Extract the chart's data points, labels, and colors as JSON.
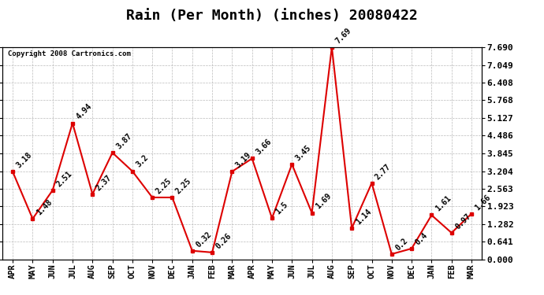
{
  "title": "Rain (Per Month) (inches) 20080422",
  "copyright_text": "Copyright 2008 Cartronics.com",
  "months": [
    "APR",
    "MAY",
    "JUN",
    "JUL",
    "AUG",
    "SEP",
    "OCT",
    "NOV",
    "DEC",
    "JAN",
    "FEB",
    "MAR",
    "APR",
    "MAY",
    "JUN",
    "JUL",
    "AUG",
    "SEP",
    "OCT",
    "NOV",
    "DEC",
    "JAN",
    "FEB",
    "MAR"
  ],
  "values": [
    3.18,
    1.48,
    2.51,
    4.94,
    2.37,
    3.87,
    3.2,
    2.25,
    2.25,
    0.32,
    0.26,
    3.19,
    3.66,
    1.5,
    3.45,
    1.69,
    7.69,
    1.14,
    2.77,
    0.2,
    0.4,
    1.61,
    0.97,
    1.66
  ],
  "line_color": "#dd0000",
  "marker_color": "#dd0000",
  "bg_color": "#ffffff",
  "grid_color": "#bbbbbb",
  "yticks": [
    0.0,
    0.641,
    1.282,
    1.923,
    2.563,
    3.204,
    3.845,
    4.486,
    5.127,
    5.768,
    6.408,
    7.049,
    7.69
  ],
  "title_fontsize": 13,
  "annotation_fontsize": 7,
  "xtick_fontsize": 7.5,
  "ytick_fontsize": 8
}
